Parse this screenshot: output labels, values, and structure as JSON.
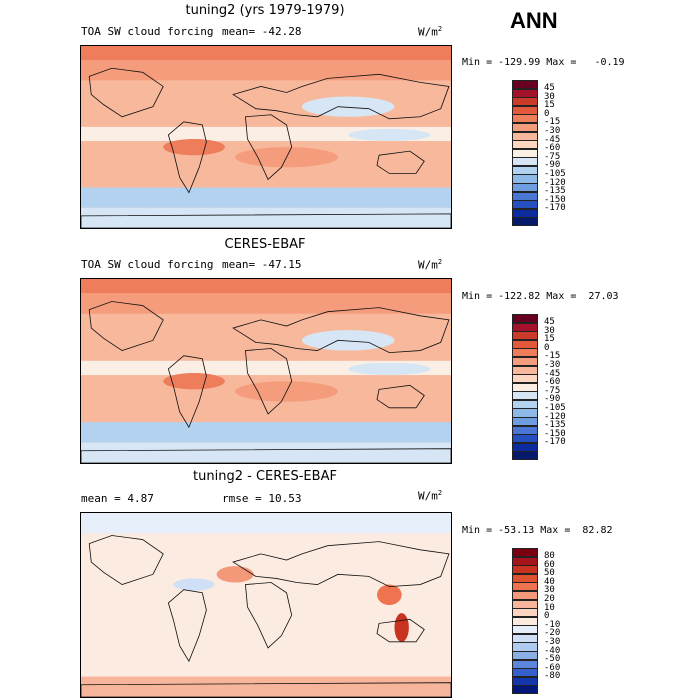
{
  "season": "ANN",
  "units": "W/m",
  "units_exp": "2",
  "palette_main": [
    "#67001f",
    "#a3122a",
    "#cc3a2a",
    "#e2593b",
    "#ee7d5b",
    "#f59c7c",
    "#f8b89c",
    "#fbd7c2",
    "#fbeee4",
    "#d6e6f5",
    "#b3d2f0",
    "#8db8e8",
    "#6f9ee0",
    "#4a76d4",
    "#264fbf",
    "#0c2c9e",
    "#061a6b"
  ],
  "palette_diff": [
    "#7a0010",
    "#a4141a",
    "#c83320",
    "#e05130",
    "#ee7450",
    "#f4987a",
    "#f7b69c",
    "#fbd4c2",
    "#fcebe0",
    "#e6effa",
    "#cfe0f6",
    "#b0cbf0",
    "#8aaee6",
    "#5c86dc",
    "#3560cc",
    "#1436ad",
    "#04167a"
  ],
  "panels": [
    {
      "title": "tuning2 (yrs 1979-1979)",
      "variable": "TOA SW cloud forcing",
      "stat1": "mean=  -42.28",
      "stat2": "",
      "minmax": "Min = -129.99 Max =   -0.19",
      "levels": [
        "45",
        "30",
        "15",
        "0",
        "-15",
        "-30",
        "-45",
        "-60",
        "-75",
        "-90",
        "-105",
        "-120",
        "-135",
        "-150",
        "-170"
      ]
    },
    {
      "title": "CERES-EBAF",
      "variable": "TOA SW cloud forcing",
      "stat1": "mean= -47.15",
      "stat2": "",
      "minmax": "Min = -122.82 Max =  27.03",
      "levels": [
        "45",
        "30",
        "15",
        "0",
        "-15",
        "-30",
        "-45",
        "-60",
        "-75",
        "-90",
        "-105",
        "-120",
        "-135",
        "-150",
        "-170"
      ]
    },
    {
      "title": "tuning2 - CERES-EBAF",
      "variable": "",
      "stat1": "mean =   4.87",
      "stat2": "rmse =  10.53",
      "minmax": "Min = -53.13 Max =  82.82",
      "levels": [
        "80",
        "60",
        "50",
        "40",
        "30",
        "20",
        "10",
        "0",
        "-10",
        "-20",
        "-30",
        "-40",
        "-50",
        "-60",
        "-80"
      ]
    }
  ]
}
